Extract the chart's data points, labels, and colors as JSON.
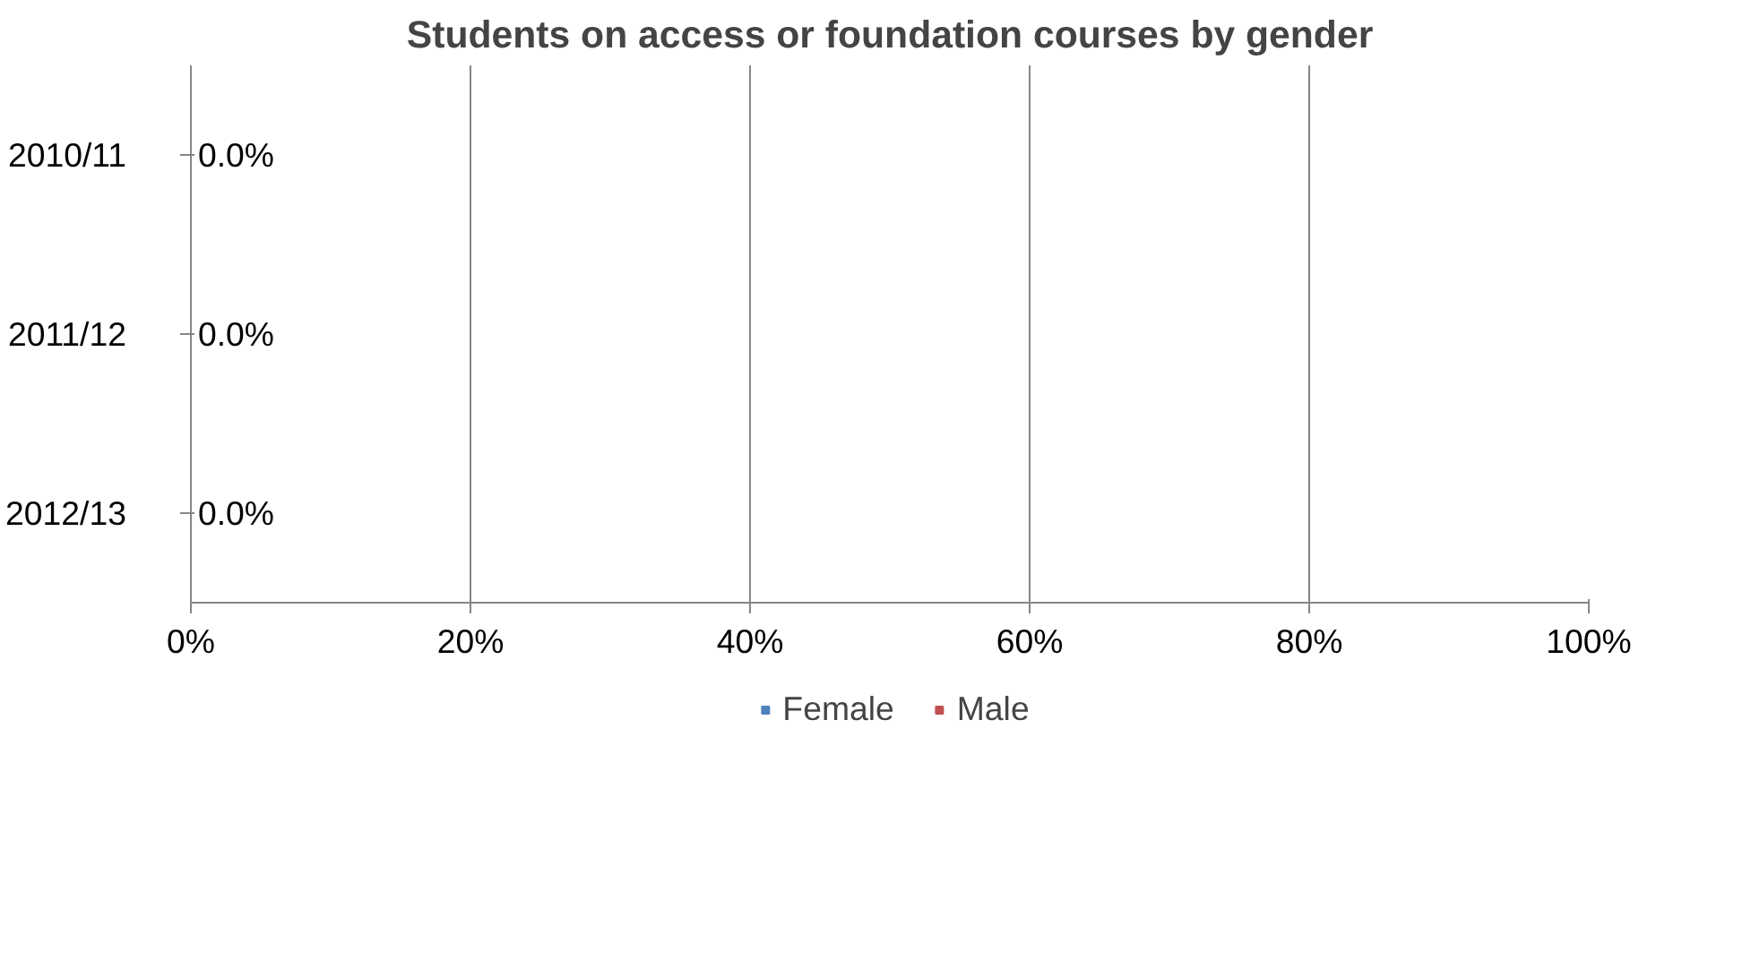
{
  "chart_data": {
    "type": "bar",
    "orientation": "horizontal",
    "title": "Students on access or foundation courses by gender",
    "categories": [
      "2010/11",
      "2011/12",
      "2012/13"
    ],
    "series": [
      {
        "name": "Female",
        "color": "#4f81bd",
        "values": [
          0,
          0,
          0
        ],
        "value_labels": [
          "0.0%",
          "0.0%",
          "0.0%"
        ]
      },
      {
        "name": "Male",
        "color": "#c0504d",
        "values": [
          0,
          0,
          0
        ]
      }
    ],
    "xlim": [
      0,
      100
    ],
    "xticks": [
      {
        "value": 0,
        "label": "0%"
      },
      {
        "value": 20,
        "label": "20%"
      },
      {
        "value": 40,
        "label": "40%"
      },
      {
        "value": 60,
        "label": "60%"
      },
      {
        "value": 80,
        "label": "80%"
      },
      {
        "value": 100,
        "label": "100%"
      }
    ],
    "grid": "x",
    "legend": "bottom"
  }
}
